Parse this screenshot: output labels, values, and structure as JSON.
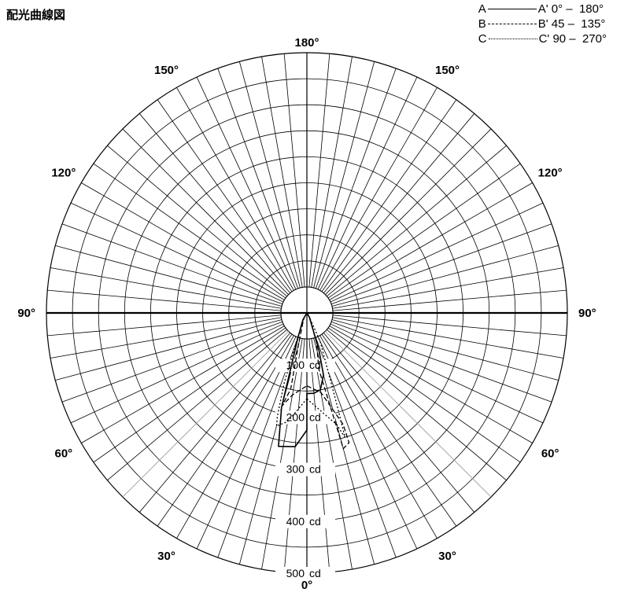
{
  "title": "配光曲線図",
  "legend": [
    {
      "start": "A",
      "end": "A'",
      "range": "0° –  180°",
      "style": "solid"
    },
    {
      "start": "B",
      "end": "B'",
      "range": "45 –  135°",
      "style": "dashed"
    },
    {
      "start": "C",
      "end": "C'",
      "range": "90 –  270°",
      "style": "dotted"
    }
  ],
  "chart_data": {
    "type": "polar",
    "title": "配光曲線図",
    "r_unit": "cd",
    "r_max": 500,
    "r_min": 0,
    "r_ticks": [
      {
        "value": 100,
        "label": "100",
        "unit": "cd"
      },
      {
        "value": 200,
        "label": "200",
        "unit": "cd"
      },
      {
        "value": 300,
        "label": "300",
        "unit": "cd"
      },
      {
        "value": 400,
        "label": "400",
        "unit": "cd"
      },
      {
        "value": 500,
        "label": "500",
        "unit": "cd"
      }
    ],
    "angle_labels": [
      {
        "angle": 0,
        "label": "0°",
        "side": "bottom"
      },
      {
        "angle": 30,
        "label": "30°",
        "side": "left"
      },
      {
        "angle": 30,
        "label": "30°",
        "side": "right"
      },
      {
        "angle": 60,
        "label": "60°",
        "side": "left"
      },
      {
        "angle": 60,
        "label": "60°",
        "side": "right"
      },
      {
        "angle": 90,
        "label": "90°",
        "side": "left"
      },
      {
        "angle": 90,
        "label": "90°",
        "side": "right"
      },
      {
        "angle": 120,
        "label": "120°",
        "side": "left"
      },
      {
        "angle": 120,
        "label": "120°",
        "side": "right"
      },
      {
        "angle": 150,
        "label": "150°",
        "side": "left"
      },
      {
        "angle": 150,
        "label": "150°",
        "side": "right"
      },
      {
        "angle": 180,
        "label": "180°",
        "side": "top"
      }
    ],
    "series": [
      {
        "name": "A - A' 0° - 180°",
        "style": "solid",
        "points": [
          {
            "angle": 0,
            "side": "right",
            "r": 155
          },
          {
            "angle": 5,
            "side": "right",
            "r": 155
          },
          {
            "angle": 10,
            "side": "right",
            "r": 150
          },
          {
            "angle": 15,
            "side": "right",
            "r": 123
          },
          {
            "angle": 18,
            "side": "right",
            "r": 75
          },
          {
            "angle": 30,
            "side": "right",
            "r": 10
          },
          {
            "angle": 90,
            "side": "right",
            "r": 0
          },
          {
            "angle": 90,
            "side": "left",
            "r": 0
          },
          {
            "angle": 30,
            "side": "left",
            "r": 15
          },
          {
            "angle": 20,
            "side": "left",
            "r": 50
          },
          {
            "angle": 15,
            "side": "left",
            "r": 188
          },
          {
            "angle": 12,
            "side": "left",
            "r": 262
          },
          {
            "angle": 5,
            "side": "left",
            "r": 258
          },
          {
            "angle": 0,
            "side": "left",
            "r": 225
          }
        ]
      },
      {
        "name": "B - B' 45 - 135°",
        "style": "dashed",
        "points": [
          {
            "angle": 0,
            "side": "right",
            "r": 140
          },
          {
            "angle": 10,
            "side": "right",
            "r": 155
          },
          {
            "angle": 18,
            "side": "right",
            "r": 225
          },
          {
            "angle": 18,
            "side": "right",
            "r": 262
          },
          {
            "angle": 15,
            "side": "right",
            "r": 270
          },
          {
            "angle": 12,
            "side": "right",
            "r": 110
          },
          {
            "angle": 18,
            "side": "right",
            "r": 60
          },
          {
            "angle": 30,
            "side": "right",
            "r": 10
          },
          {
            "angle": 90,
            "side": "right",
            "r": 0
          },
          {
            "angle": 90,
            "side": "left",
            "r": 0
          },
          {
            "angle": 30,
            "side": "left",
            "r": 12
          },
          {
            "angle": 15,
            "side": "left",
            "r": 60
          },
          {
            "angle": 12,
            "side": "left",
            "r": 150
          },
          {
            "angle": 15,
            "side": "left",
            "r": 185
          },
          {
            "angle": 10,
            "side": "left",
            "r": 160
          },
          {
            "angle": 0,
            "side": "left",
            "r": 140
          }
        ]
      },
      {
        "name": "C - C' 90 - 270°",
        "style": "dotted",
        "points": [
          {
            "angle": 0,
            "side": "right",
            "r": 165
          },
          {
            "angle": 10,
            "side": "right",
            "r": 198
          },
          {
            "angle": 15,
            "side": "right",
            "r": 222
          },
          {
            "angle": 17,
            "side": "right",
            "r": 250
          },
          {
            "angle": 18,
            "side": "right",
            "r": 190
          },
          {
            "angle": 25,
            "side": "right",
            "r": 60
          },
          {
            "angle": 30,
            "side": "right",
            "r": 10
          },
          {
            "angle": 90,
            "side": "right",
            "r": 0
          },
          {
            "angle": 90,
            "side": "left",
            "r": 0
          },
          {
            "angle": 30,
            "side": "left",
            "r": 10
          },
          {
            "angle": 20,
            "side": "left",
            "r": 60
          },
          {
            "angle": 18,
            "side": "left",
            "r": 140
          },
          {
            "angle": 16,
            "side": "left",
            "r": 205
          },
          {
            "angle": 15,
            "side": "left",
            "r": 225
          },
          {
            "angle": 10,
            "side": "left",
            "r": 212
          },
          {
            "angle": 0,
            "side": "left",
            "r": 165
          }
        ]
      }
    ]
  }
}
